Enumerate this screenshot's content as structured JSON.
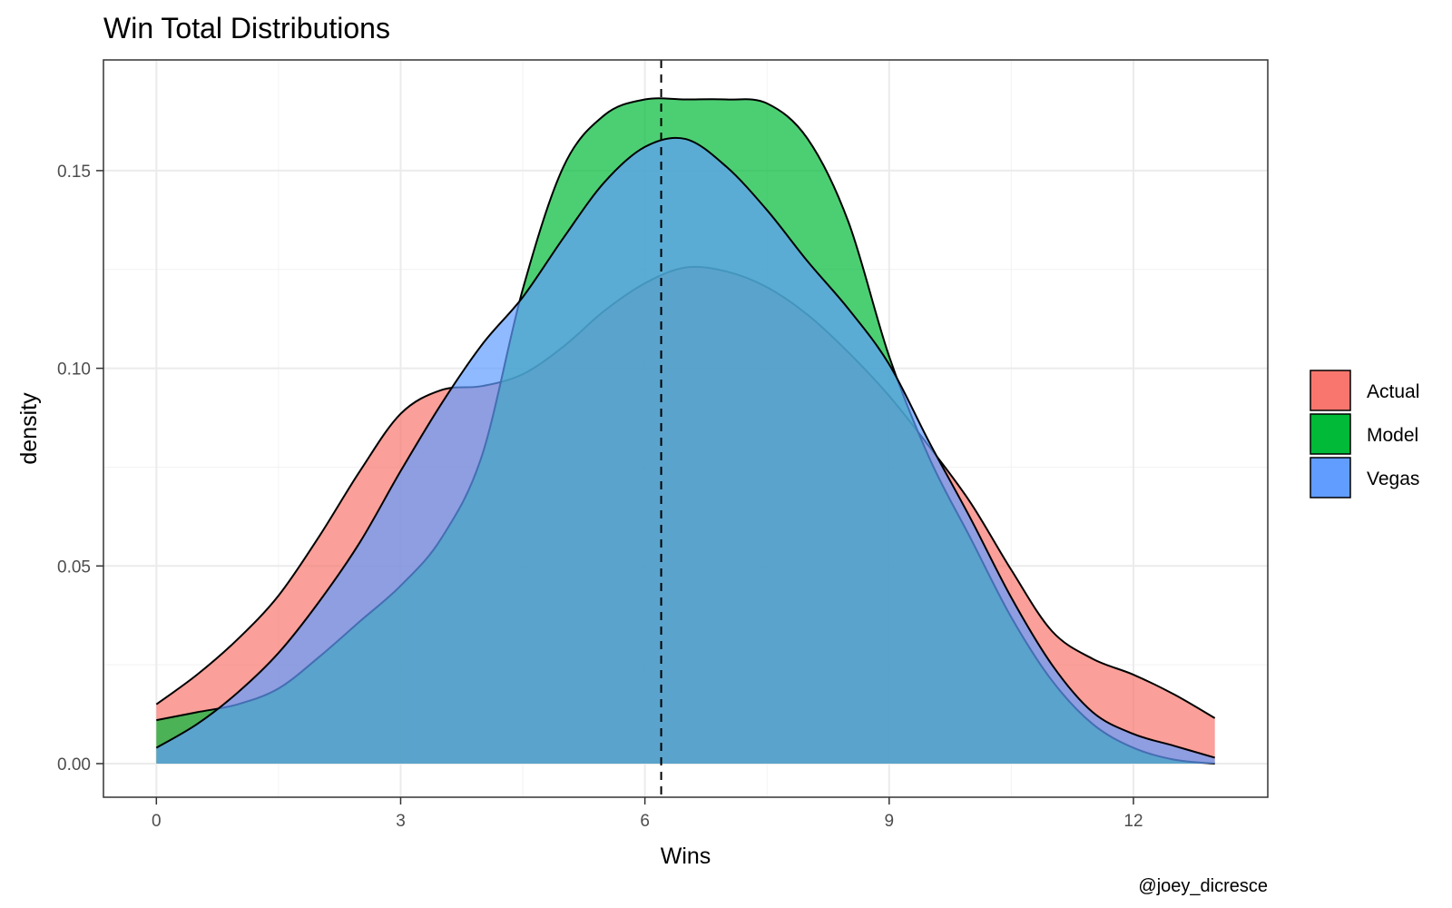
{
  "chart_data": {
    "type": "area",
    "title": "Win Total Distributions",
    "xlabel": "Wins",
    "ylabel": "density",
    "caption": "@joey_dicresce",
    "xlim": [
      -0.65,
      13.65
    ],
    "ylim": [
      -0.0085,
      0.178
    ],
    "xticks": [
      0,
      3,
      6,
      9,
      12
    ],
    "xtick_labels": [
      "0",
      "3",
      "6",
      "9",
      "12"
    ],
    "yticks": [
      0.0,
      0.05,
      0.1,
      0.15
    ],
    "ytick_labels": [
      "0.00",
      "0.05",
      "0.10",
      "0.15"
    ],
    "grid": true,
    "legend_position": "right",
    "reference_line": {
      "x": 6.2,
      "style": "dashed"
    },
    "series": [
      {
        "name": "Actual",
        "color": "#F8766D",
        "x": [
          0,
          0.5,
          1,
          1.5,
          2,
          2.5,
          3,
          3.5,
          4,
          4.5,
          5,
          5.5,
          6,
          6.5,
          7,
          7.5,
          8,
          8.5,
          9,
          9.5,
          10,
          10.5,
          11,
          11.5,
          12,
          12.5,
          13
        ],
        "y": [
          0.015,
          0.0225,
          0.0315,
          0.0425,
          0.0575,
          0.074,
          0.0885,
          0.0945,
          0.0955,
          0.0985,
          0.1055,
          0.1145,
          0.1215,
          0.1255,
          0.1245,
          0.1205,
          0.1135,
          0.104,
          0.093,
          0.08,
          0.066,
          0.049,
          0.0335,
          0.0265,
          0.0225,
          0.0175,
          0.0115
        ]
      },
      {
        "name": "Model",
        "color": "#00BA38",
        "x": [
          0,
          0.5,
          1,
          1.5,
          2,
          2.5,
          3,
          3.5,
          4,
          4.5,
          5,
          5.5,
          6,
          6.5,
          7,
          7.5,
          8,
          8.5,
          9,
          9.5,
          10,
          10.5,
          11,
          11.5,
          12,
          12.5,
          13
        ],
        "y": [
          0.011,
          0.013,
          0.015,
          0.019,
          0.027,
          0.036,
          0.045,
          0.057,
          0.078,
          0.12,
          0.151,
          0.164,
          0.168,
          0.168,
          0.168,
          0.167,
          0.158,
          0.137,
          0.103,
          0.077,
          0.057,
          0.037,
          0.021,
          0.01,
          0.004,
          0.001,
          0.0
        ]
      },
      {
        "name": "Vegas",
        "color": "#619CFF",
        "x": [
          0,
          0.5,
          1,
          1.5,
          2,
          2.5,
          3,
          3.5,
          4,
          4.5,
          5,
          5.5,
          6,
          6.5,
          7,
          7.5,
          8,
          8.5,
          9,
          9.5,
          10,
          10.5,
          11,
          11.5,
          12,
          12.5,
          13
        ],
        "y": [
          0.004,
          0.01,
          0.018,
          0.028,
          0.041,
          0.056,
          0.074,
          0.091,
          0.106,
          0.118,
          0.133,
          0.147,
          0.156,
          0.158,
          0.151,
          0.14,
          0.127,
          0.115,
          0.101,
          0.081,
          0.062,
          0.042,
          0.025,
          0.013,
          0.0075,
          0.0045,
          0.0015
        ]
      }
    ]
  }
}
